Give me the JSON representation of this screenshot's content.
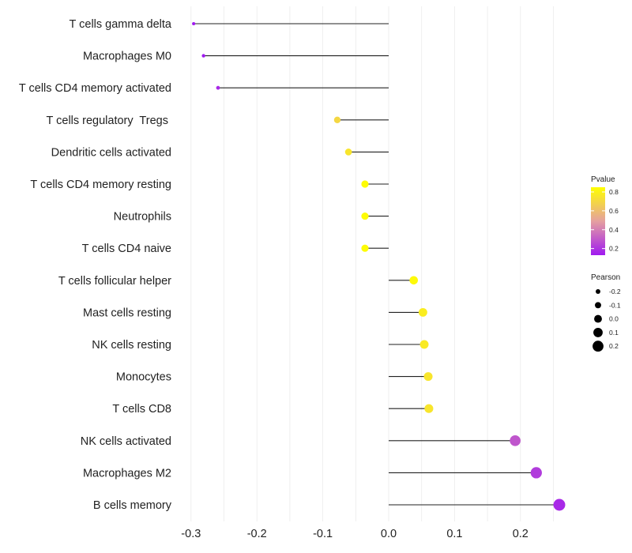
{
  "chart_data": {
    "type": "lollipop",
    "title": "",
    "xlabel": "",
    "ylabel": "",
    "xlim": [
      -0.31,
      0.28
    ],
    "x_ticks": [
      -0.3,
      -0.2,
      -0.1,
      0.0,
      0.1,
      0.2
    ],
    "x_tick_labels": [
      "-0.3",
      "-0.2",
      "-0.1",
      "0.0",
      "0.1",
      "0.2"
    ],
    "points": [
      {
        "category": "T cells gamma delta",
        "pearson": -0.296,
        "pvalue": 0.1
      },
      {
        "category": "Macrophages M0",
        "pearson": -0.281,
        "pvalue": 0.13
      },
      {
        "category": "T cells CD4 memory activated",
        "pearson": -0.259,
        "pvalue": 0.17
      },
      {
        "category": "T cells regulatory  Tregs ",
        "pearson": -0.078,
        "pvalue": 0.7
      },
      {
        "category": "Dendritic cells activated",
        "pearson": -0.061,
        "pvalue": 0.75
      },
      {
        "category": "T cells CD4 memory resting",
        "pearson": -0.036,
        "pvalue": 0.84
      },
      {
        "category": "Neutrophils",
        "pearson": -0.036,
        "pvalue": 0.84
      },
      {
        "category": "T cells CD4 naive",
        "pearson": -0.036,
        "pvalue": 0.84
      },
      {
        "category": "T cells follicular helper",
        "pearson": 0.038,
        "pvalue": 0.83
      },
      {
        "category": "Mast cells resting",
        "pearson": 0.052,
        "pvalue": 0.78
      },
      {
        "category": "NK cells resting",
        "pearson": 0.054,
        "pvalue": 0.77
      },
      {
        "category": "Monocytes",
        "pearson": 0.06,
        "pvalue": 0.75
      },
      {
        "category": "T cells CD8",
        "pearson": 0.061,
        "pvalue": 0.75
      },
      {
        "category": "NK cells activated",
        "pearson": 0.192,
        "pvalue": 0.29
      },
      {
        "category": "Macrophages M2",
        "pearson": 0.224,
        "pvalue": 0.22
      },
      {
        "category": "B cells memory",
        "pearson": 0.259,
        "pvalue": 0.17
      }
    ],
    "color_legend": {
      "title": "Pvalue",
      "min": 0.13,
      "max": 0.85,
      "ticks": [
        0.2,
        0.4,
        0.6,
        0.8
      ],
      "tick_labels": [
        "0.2",
        "0.4",
        "0.6",
        "0.8"
      ],
      "low_color": "#A01AF0",
      "mid_color": "#E8A088",
      "high_color": "#FFFF00"
    },
    "size_legend": {
      "title": "Pearson",
      "values": [
        -0.2,
        -0.1,
        0.0,
        0.1,
        0.2
      ],
      "labels": [
        "-0.2",
        "-0.1",
        "0.0",
        "0.1",
        "0.2"
      ]
    },
    "grid": true,
    "legend_position": "right"
  }
}
